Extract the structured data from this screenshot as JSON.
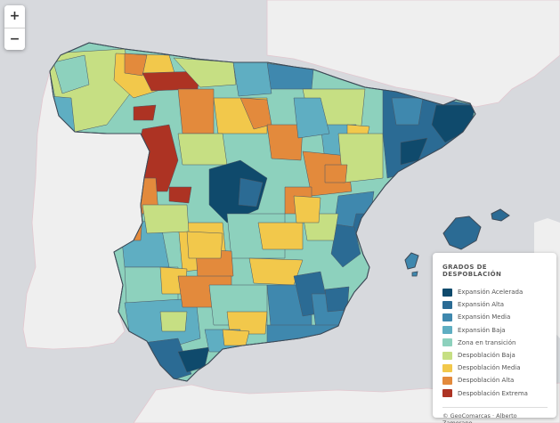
{
  "zoom": {
    "in_label": "+",
    "out_label": "−"
  },
  "legend": {
    "title": "GRADOS DE DESPOBLACIÓN",
    "items": [
      {
        "label": "Expansión Acelerada",
        "color": "#0f4a6c"
      },
      {
        "label": "Expansión Alta",
        "color": "#2b6b94"
      },
      {
        "label": "Expansión Media",
        "color": "#3f88ae"
      },
      {
        "label": "Expansión Baja",
        "color": "#5faec2"
      },
      {
        "label": "Zona en transición",
        "color": "#8dd1bd"
      },
      {
        "label": "Despoblación Baja",
        "color": "#c6df83"
      },
      {
        "label": "Despoblación Media",
        "color": "#f2c84b"
      },
      {
        "label": "Despoblación Alta",
        "color": "#e38a3c"
      },
      {
        "label": "Despoblación Extrema",
        "color": "#ad3323"
      }
    ],
    "attribution": "© GeoComarcas · Alberto Zamorano"
  },
  "colors": {
    "sea": "#d7d9dd",
    "land_outside": "#efefef",
    "border": "#3d4a57"
  }
}
